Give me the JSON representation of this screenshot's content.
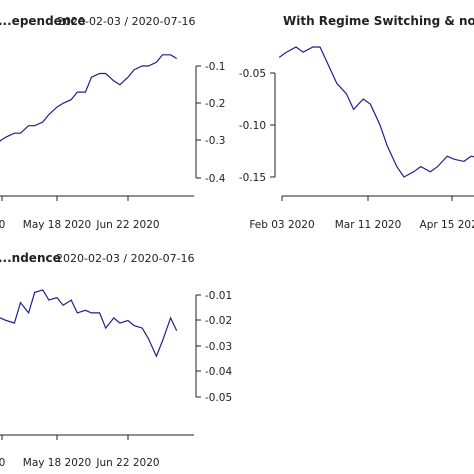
{
  "colors": {
    "series": "#1f1f8f",
    "axis": "#222222",
    "background": "#ffffff"
  },
  "chart_data": [
    {
      "type": "line",
      "title": "...ependence",
      "date_range": "2020-02-03 / 2020-07-16",
      "x_tick_labels": [
        "0",
        "May 18 2020",
        "Jun 22 2020"
      ],
      "y_tick_labels": [
        "-0.1",
        "-0.2",
        "-0.3",
        "-0.4"
      ],
      "ylim": [
        -0.43,
        -0.03
      ],
      "series": [
        {
          "x": [
            "2020-04-13",
            "2020-04-16",
            "2020-04-20",
            "2020-04-23",
            "2020-04-27",
            "2020-04-30",
            "2020-05-04",
            "2020-05-07",
            "2020-05-11",
            "2020-05-14",
            "2020-05-18",
            "2020-05-21",
            "2020-05-25",
            "2020-05-28",
            "2020-06-01",
            "2020-06-04",
            "2020-06-08",
            "2020-06-11",
            "2020-06-15",
            "2020-06-18",
            "2020-06-22",
            "2020-06-25",
            "2020-06-29",
            "2020-07-02",
            "2020-07-06",
            "2020-07-09",
            "2020-07-13",
            "2020-07-16"
          ],
          "values": [
            -0.33,
            -0.33,
            -0.3,
            -0.29,
            -0.28,
            -0.28,
            -0.26,
            -0.26,
            -0.25,
            -0.23,
            -0.21,
            -0.2,
            -0.19,
            -0.17,
            -0.17,
            -0.13,
            -0.12,
            -0.12,
            -0.14,
            -0.15,
            -0.13,
            -0.11,
            -0.1,
            -0.1,
            -0.09,
            -0.07,
            -0.07,
            -0.08
          ]
        }
      ]
    },
    {
      "type": "line",
      "title": "With Regime Switching & no de...",
      "x_tick_labels": [
        "Feb 03 2020",
        "Mar 11 2020",
        "Apr 15 2020"
      ],
      "y_tick_labels": [
        "-0.05",
        "-0.10",
        "-0.15"
      ],
      "ylim": [
        -0.155,
        -0.02
      ],
      "series": [
        {
          "x": [
            "2020-02-03",
            "2020-02-06",
            "2020-02-10",
            "2020-02-13",
            "2020-02-17",
            "2020-02-20",
            "2020-02-24",
            "2020-02-27",
            "2020-03-02",
            "2020-03-05",
            "2020-03-09",
            "2020-03-12",
            "2020-03-16",
            "2020-03-19",
            "2020-03-23",
            "2020-03-26",
            "2020-03-30",
            "2020-04-02",
            "2020-04-06",
            "2020-04-09",
            "2020-04-13",
            "2020-04-16",
            "2020-04-20",
            "2020-04-23",
            "2020-04-27",
            "2020-04-30"
          ],
          "values": [
            -0.035,
            -0.03,
            -0.025,
            -0.03,
            -0.025,
            -0.025,
            -0.045,
            -0.06,
            -0.07,
            -0.085,
            -0.075,
            -0.08,
            -0.1,
            -0.12,
            -0.14,
            -0.15,
            -0.145,
            -0.14,
            -0.145,
            -0.14,
            -0.13,
            -0.133,
            -0.135,
            -0.13,
            -0.132,
            -0.14
          ]
        }
      ]
    },
    {
      "type": "line",
      "title": "...ndence",
      "date_range": "2020-02-03 / 2020-07-16",
      "x_tick_labels": [
        "0",
        "May 18 2020",
        "Jun 22 2020"
      ],
      "y_tick_labels": [
        "-0.01",
        "-0.02",
        "-0.03",
        "-0.04",
        "-0.05"
      ],
      "ylim": [
        -0.055,
        -0.005
      ],
      "series": [
        {
          "x": [
            "2020-04-13",
            "2020-04-16",
            "2020-04-20",
            "2020-04-23",
            "2020-04-27",
            "2020-04-30",
            "2020-05-04",
            "2020-05-07",
            "2020-05-11",
            "2020-05-14",
            "2020-05-18",
            "2020-05-21",
            "2020-05-25",
            "2020-05-28",
            "2020-06-01",
            "2020-06-04",
            "2020-06-08",
            "2020-06-11",
            "2020-06-15",
            "2020-06-18",
            "2020-06-22",
            "2020-06-25",
            "2020-06-29",
            "2020-07-02",
            "2020-07-06",
            "2020-07-09",
            "2020-07-13",
            "2020-07-16"
          ],
          "values": [
            -0.02,
            -0.02,
            -0.019,
            -0.02,
            -0.021,
            -0.013,
            -0.017,
            -0.009,
            -0.008,
            -0.012,
            -0.011,
            -0.014,
            -0.012,
            -0.017,
            -0.016,
            -0.017,
            -0.017,
            -0.023,
            -0.019,
            -0.021,
            -0.02,
            -0.022,
            -0.023,
            -0.027,
            -0.034,
            -0.028,
            -0.019,
            -0.024
          ]
        }
      ]
    }
  ]
}
